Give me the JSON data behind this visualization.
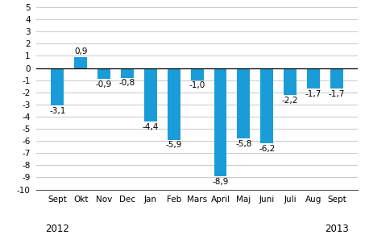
{
  "categories": [
    "Sept",
    "Okt",
    "Nov",
    "Dec",
    "Jan",
    "Feb",
    "Mars",
    "April",
    "Maj",
    "Juni",
    "Juli",
    "Aug",
    "Sept"
  ],
  "values": [
    -3.1,
    0.9,
    -0.9,
    -0.8,
    -4.4,
    -5.9,
    -1.0,
    -8.9,
    -5.8,
    -6.2,
    -2.2,
    -1.7,
    -1.7
  ],
  "bar_color": "#1a9cd8",
  "ylim": [
    -10,
    5
  ],
  "yticks": [
    -10,
    -9,
    -8,
    -7,
    -6,
    -5,
    -4,
    -3,
    -2,
    -1,
    0,
    1,
    2,
    3,
    4,
    5
  ],
  "value_labels": {
    "0": "-3,1",
    "1": "0,9",
    "2": "-0,9",
    "3": "-0,8",
    "4": "-4,4",
    "5": "-5,9",
    "6": "-1,0",
    "7": "-8,9",
    "8": "-5,8",
    "9": "-6,2",
    "10": "-2,2",
    "11": "-1,7",
    "12": "-1,7"
  },
  "background_color": "#ffffff",
  "grid_color": "#c8c8c8",
  "label_fontsize": 7.5,
  "tick_fontsize": 7.5,
  "year_fontsize": 8.5,
  "bar_width": 0.55
}
